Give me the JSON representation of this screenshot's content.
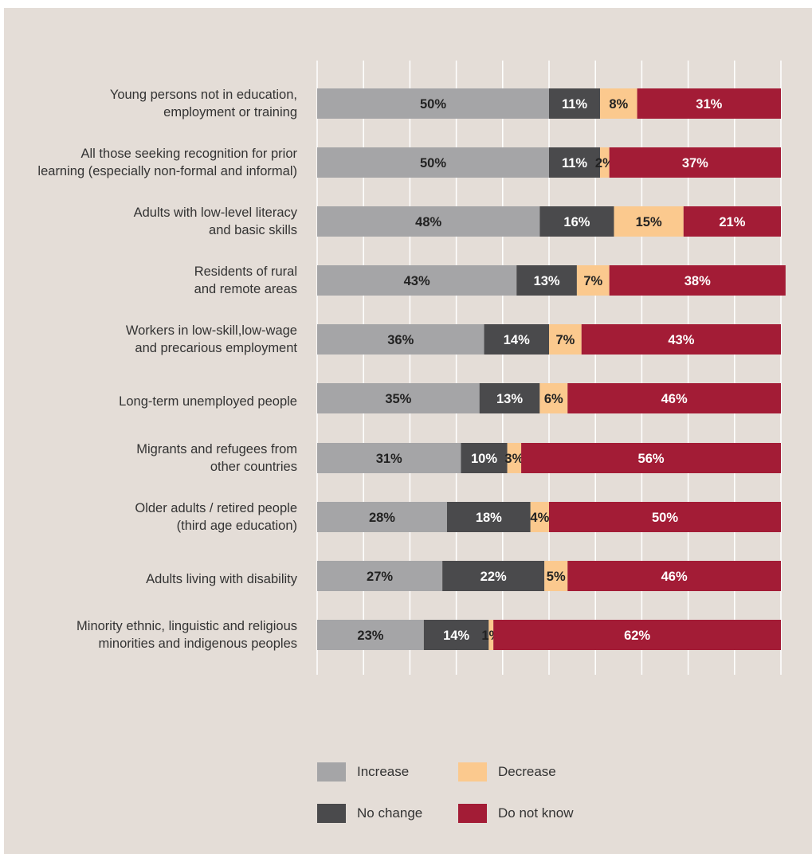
{
  "chart_data": {
    "type": "bar",
    "orientation": "horizontal",
    "stacked": true,
    "unit": "%",
    "categories": [
      "Young persons not in education,\nemployment or training",
      "All those seeking recognition for prior\nlearning (especially non-formal and informal)",
      "Adults with low-level literacy\nand basic skills",
      "Residents of rural\nand remote areas",
      "Workers in low-skill,low-wage\nand precarious employment",
      "Long-term unemployed people",
      "Migrants and refugees from\nother countries",
      "Older adults / retired people\n(third age education)",
      "Adults living with disability",
      "Minority ethnic, linguistic and religious\nminorities and indigenous peoples"
    ],
    "series": [
      {
        "name": "Increase",
        "color": "#a5a5a7",
        "label_color": "#222222",
        "values": [
          50,
          50,
          48,
          43,
          36,
          35,
          31,
          28,
          27,
          23
        ]
      },
      {
        "name": "No change",
        "color": "#4a4a4c",
        "label_color": "#ffffff",
        "values": [
          11,
          11,
          16,
          13,
          14,
          13,
          10,
          18,
          22,
          14
        ]
      },
      {
        "name": "Decrease",
        "color": "#fbc98e",
        "label_color": "#222222",
        "values": [
          8,
          2,
          15,
          7,
          7,
          6,
          3,
          4,
          5,
          1
        ]
      },
      {
        "name": "Do not know",
        "color": "#a31c36",
        "label_color": "#ffffff",
        "values": [
          31,
          37,
          21,
          38,
          43,
          46,
          56,
          50,
          46,
          62
        ]
      }
    ],
    "xlim": [
      0,
      100
    ],
    "grid": true,
    "legend": {
      "position": "bottom",
      "columns": 2,
      "order": [
        "Increase",
        "Decrease",
        "No change",
        "Do not know"
      ]
    }
  }
}
